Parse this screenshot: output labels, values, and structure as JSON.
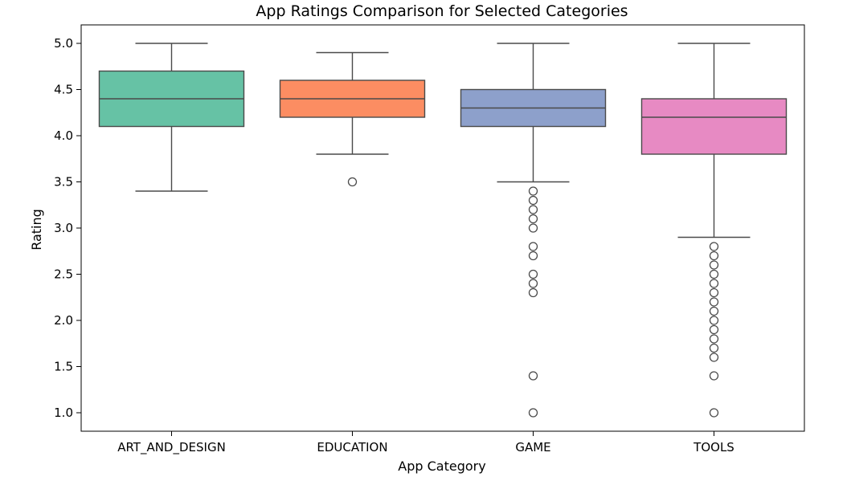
{
  "chart_data": {
    "type": "box",
    "title": "App Ratings Comparison for Selected Categories",
    "xlabel": "App Category",
    "ylabel": "Rating",
    "ylim": [
      0.8,
      5.2
    ],
    "yticks": [
      "1.0",
      "1.5",
      "2.0",
      "2.5",
      "3.0",
      "3.5",
      "4.0",
      "4.5",
      "5.0"
    ],
    "grid": false,
    "categories": [
      "ART_AND_DESIGN",
      "EDUCATION",
      "GAME",
      "TOOLS"
    ],
    "boxes": [
      {
        "category": "ART_AND_DESIGN",
        "color": "#66c2a5",
        "whisker_low": 3.4,
        "q1": 4.1,
        "median": 4.4,
        "q3": 4.7,
        "whisker_high": 5.0,
        "outliers": []
      },
      {
        "category": "EDUCATION",
        "color": "#fc8d62",
        "whisker_low": 3.8,
        "q1": 4.2,
        "median": 4.4,
        "q3": 4.6,
        "whisker_high": 4.9,
        "outliers": [
          3.5
        ]
      },
      {
        "category": "GAME",
        "color": "#8da0cb",
        "whisker_low": 3.5,
        "q1": 4.1,
        "median": 4.3,
        "q3": 4.5,
        "whisker_high": 5.0,
        "outliers": [
          3.4,
          3.3,
          3.2,
          3.1,
          3.0,
          2.8,
          2.7,
          2.5,
          2.4,
          2.3,
          1.4,
          1.0
        ]
      },
      {
        "category": "TOOLS",
        "color": "#e78ac3",
        "whisker_low": 2.9,
        "q1": 3.8,
        "median": 4.2,
        "q3": 4.4,
        "whisker_high": 5.0,
        "outliers": [
          2.8,
          2.7,
          2.6,
          2.5,
          2.4,
          2.3,
          2.2,
          2.1,
          2.0,
          1.9,
          1.8,
          1.7,
          1.6,
          1.4,
          1.0
        ]
      }
    ]
  }
}
